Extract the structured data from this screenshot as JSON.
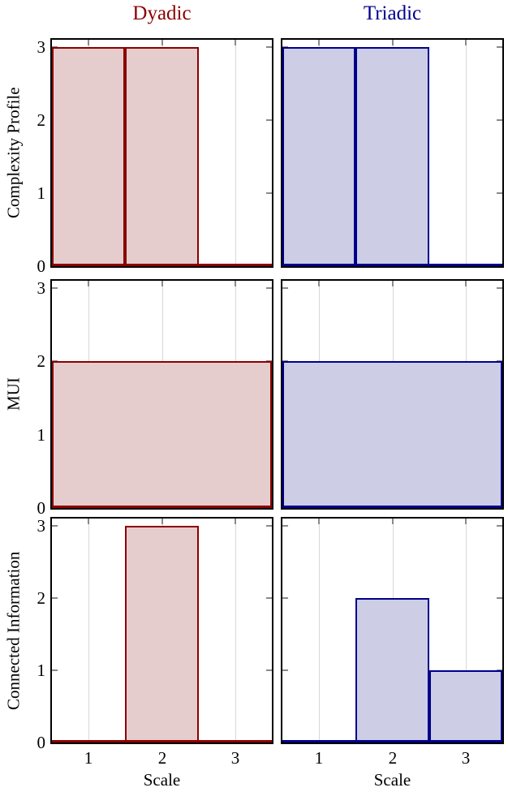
{
  "figure": {
    "columns": [
      {
        "label": "Dyadic",
        "line_color": "#8b0000",
        "fill_color": "#e5cdcd",
        "title_color": "#8b0000"
      },
      {
        "label": "Triadic",
        "line_color": "#00008b",
        "fill_color": "#cdcde6",
        "title_color": "#00008b"
      }
    ],
    "rows": [
      {
        "label": "Complexity Profile"
      },
      {
        "label": "MUI"
      },
      {
        "label": "Connected Information"
      }
    ],
    "xlabel": "Scale",
    "axis": {
      "xlim": [
        0.5,
        3.5
      ],
      "ylim": [
        0,
        3.1
      ],
      "xticks": [
        1,
        2,
        3
      ],
      "yticks": [
        0,
        1,
        2,
        3
      ],
      "grid_x": [
        1,
        2,
        3
      ],
      "grid_on": true
    },
    "style_colors": {
      "spine": "#000000",
      "tick": "#8a8a8a",
      "gridline": "#ddd5dd",
      "background": "#ffffff"
    }
  },
  "chart_data": [
    {
      "type": "bar",
      "row": "Complexity Profile",
      "column": "Dyadic",
      "categories": [
        1,
        2,
        3
      ],
      "values": [
        3,
        3,
        0
      ],
      "segments": [
        {
          "x0": 0.5,
          "x1": 1.5,
          "y": 3
        },
        {
          "x0": 1.5,
          "x1": 2.5,
          "y": 3
        }
      ],
      "xlabel": "",
      "ylabel": "Complexity Profile",
      "ylim": [
        0,
        3.1
      ]
    },
    {
      "type": "bar",
      "row": "Complexity Profile",
      "column": "Triadic",
      "categories": [
        1,
        2,
        3
      ],
      "values": [
        3,
        3,
        0
      ],
      "segments": [
        {
          "x0": 0.5,
          "x1": 1.5,
          "y": 3
        },
        {
          "x0": 1.5,
          "x1": 2.5,
          "y": 3
        }
      ],
      "xlabel": "",
      "ylabel": "",
      "ylim": [
        0,
        3.1
      ]
    },
    {
      "type": "bar",
      "row": "MUI",
      "column": "Dyadic",
      "categories": [
        1,
        2,
        3
      ],
      "values": [
        2,
        2,
        2
      ],
      "segments": [
        {
          "x0": 0.5,
          "x1": 3.5,
          "y": 2
        }
      ],
      "xlabel": "",
      "ylabel": "MUI",
      "ylim": [
        0,
        3.1
      ]
    },
    {
      "type": "bar",
      "row": "MUI",
      "column": "Triadic",
      "categories": [
        1,
        2,
        3
      ],
      "values": [
        2,
        2,
        2
      ],
      "segments": [
        {
          "x0": 0.5,
          "x1": 3.5,
          "y": 2
        }
      ],
      "xlabel": "",
      "ylabel": "",
      "ylim": [
        0,
        3.1
      ]
    },
    {
      "type": "bar",
      "row": "Connected Information",
      "column": "Dyadic",
      "categories": [
        1,
        2,
        3
      ],
      "values": [
        0,
        3,
        0
      ],
      "segments": [
        {
          "x0": 1.5,
          "x1": 2.5,
          "y": 3
        }
      ],
      "xlabel": "Scale",
      "ylabel": "Connected Information",
      "ylim": [
        0,
        3.1
      ]
    },
    {
      "type": "bar",
      "row": "Connected Information",
      "column": "Triadic",
      "categories": [
        1,
        2,
        3
      ],
      "values": [
        0,
        2,
        1
      ],
      "segments": [
        {
          "x0": 1.5,
          "x1": 2.5,
          "y": 2
        },
        {
          "x0": 2.5,
          "x1": 3.5,
          "y": 1
        }
      ],
      "xlabel": "Scale",
      "ylabel": "",
      "ylim": [
        0,
        3.1
      ]
    }
  ]
}
